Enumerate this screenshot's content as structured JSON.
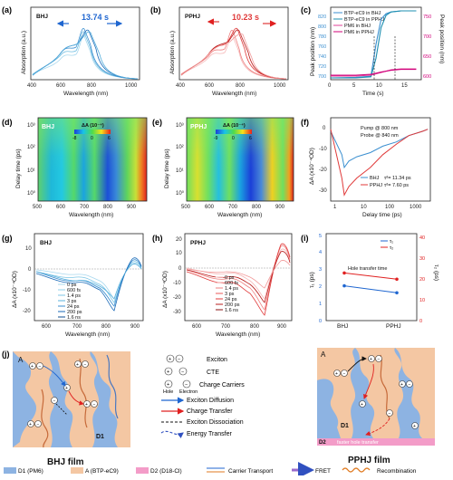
{
  "panels": {
    "a": {
      "letter": "(a)",
      "tag": "BHJ",
      "time_label": "13.74 s",
      "xlabel": "Wavelength (nm)",
      "ylabel": "Absorption (a.u.)",
      "xticks": [
        "400",
        "600",
        "800",
        "1000"
      ]
    },
    "b": {
      "letter": "(b)",
      "tag": "PPHJ",
      "time_label": "10.23 s",
      "xlabel": "Wavelength (nm)",
      "ylabel": "Absorption (a.u.)",
      "xticks": [
        "400",
        "600",
        "800",
        "1000"
      ]
    },
    "c": {
      "letter": "(c)",
      "xlabel": "Time (s)",
      "ylabel_left": "Peak position (nm)",
      "ylabel_right": "Peak position (nm)",
      "legend": [
        "BTP-eC9 in BHJ",
        "BTP-eC9 in PPHJ",
        "PM6 in BHJ",
        "PM6 in PPHJ"
      ],
      "xticks": [
        "0",
        "5",
        "10",
        "15"
      ],
      "yticks_left": [
        "700",
        "720",
        "740",
        "760",
        "780",
        "800",
        "820"
      ],
      "yticks_right": [
        "600",
        "650",
        "700",
        "750"
      ]
    },
    "d": {
      "letter": "(d)",
      "tag": "BHJ",
      "scale_title": "ΔA (10⁻⁴)",
      "scale_ticks": [
        "-8",
        "0",
        "6"
      ],
      "xlabel": "Wavelength (nm)",
      "ylabel": "Delay time (ps)",
      "xticks": [
        "500",
        "600",
        "700",
        "800",
        "900"
      ],
      "yticks": [
        "10³",
        "10²",
        "10¹",
        "10⁰"
      ]
    },
    "e": {
      "letter": "(e)",
      "tag": "PPHJ",
      "scale_title": "ΔA (10⁻⁴)",
      "scale_ticks": [
        "-9",
        "0",
        "6"
      ],
      "xlabel": "Wavelength (nm)",
      "ylabel": "Delay time (ps)",
      "xticks": [
        "500",
        "600",
        "700",
        "800",
        "900"
      ],
      "yticks": [
        "10³",
        "10²",
        "10¹",
        "10⁰"
      ]
    },
    "f": {
      "letter": "(f)",
      "pump": "Pump @ 800 nm",
      "probe": "Probe @ 840 nm",
      "legend": [
        "BHJ",
        "PPHJ"
      ],
      "tau_bhj": "τᵈ= 11.34 ps",
      "tau_pphj": "τᵈ= 7.60 ps",
      "xlabel": "Delay time (ps)",
      "ylabel": "ΔA (x10⁻⁴OD)",
      "xticks": [
        "1",
        "10",
        "100",
        "1000"
      ],
      "yticks": [
        "0",
        "-10",
        "-20",
        "-30"
      ]
    },
    "g": {
      "letter": "(g)",
      "tag": "BHJ",
      "xlabel": "Wavelength (nm)",
      "ylabel": "ΔA (x10⁻⁴OD)",
      "legend": [
        "0 ps",
        "600 fs",
        "1.4 ps",
        "3 ps",
        "24 ps",
        "200 ps",
        "1.6 ns"
      ],
      "xticks": [
        "600",
        "700",
        "800",
        "900"
      ],
      "yticks": [
        "10",
        "0",
        "-10",
        "-20"
      ]
    },
    "h": {
      "letter": "(h)",
      "tag": "PPHJ",
      "xlabel": "Wavelength (nm)",
      "ylabel": "ΔA (x10⁻⁴OD)",
      "legend": [
        "0 ps",
        "600 fs",
        "1.4 ps",
        "3 ps",
        "24 ps",
        "200 ps",
        "1.6 ns"
      ],
      "xticks": [
        "600",
        "700",
        "800",
        "900"
      ],
      "yticks": [
        "20",
        "10",
        "0",
        "-10",
        "-20",
        "-30"
      ]
    },
    "i": {
      "letter": "(i)",
      "title": "Hole transfer time",
      "legend": [
        "τ₁",
        "τ₂"
      ],
      "ylabel_left": "τ₁ (ps)",
      "ylabel_right": "τ₂ (ps)",
      "categories": [
        "BHJ",
        "PPHJ"
      ],
      "yticks_left": [
        "0",
        "1",
        "2",
        "3",
        "4",
        "5"
      ],
      "yticks_right": [
        "0",
        "10",
        "20",
        "30",
        "40"
      ]
    },
    "j": {
      "letter": "(j)",
      "bhj_film": "BHJ film",
      "pphj_film": "PPHJ film",
      "region_a": "A",
      "region_d1": "D1",
      "region_d2": "D2",
      "faster": "faster hole transfer",
      "key": {
        "exciton": "Exciton",
        "cte": "CTE",
        "hole": "Hole",
        "electron": "Electron",
        "charge_carriers": "Charge Carriers",
        "exciton_diffusion": "Exciton Diffusion",
        "charge_transfer": "Charge Transfer",
        "exciton_dissociation": "Exciton Dissociation",
        "energy_transfer": "Energy Transfer"
      },
      "bottom_legend": [
        "D1 (PM6)",
        "A (BTP-eC9)",
        "D2 (D18-Cl)",
        "Carrier Transport",
        "FRET",
        "Recombination"
      ]
    }
  },
  "colors": {
    "bhj": "#3b8fd0",
    "pphj": "#e03a3a",
    "pm6_bhj": "#e0409a",
    "pm6_pphj": "#d0007a",
    "acceptor_bg": "#f4c7a3",
    "donor": "#8db3e2",
    "d2": "#f39cc8"
  },
  "chart_data": [
    {
      "panel": "c",
      "type": "line",
      "xlabel": "Time (s)",
      "ylabel": "Peak position (nm)",
      "series": [
        {
          "name": "BTP-eC9 in BHJ",
          "x": [
            0,
            5,
            8,
            9,
            10,
            11,
            12,
            14,
            17
          ],
          "y": [
            700,
            701,
            703,
            760,
            805,
            815,
            818,
            820,
            820
          ]
        },
        {
          "name": "BTP-eC9 in PPHJ",
          "x": [
            0,
            5,
            8,
            9,
            10,
            11,
            12,
            14,
            17
          ],
          "y": [
            700,
            700,
            702,
            735,
            790,
            812,
            818,
            820,
            820
          ]
        },
        {
          "name": "PM6 in BHJ",
          "x": [
            0,
            5,
            8,
            10,
            12,
            14,
            17
          ],
          "y": [
            604,
            604,
            606,
            612,
            618,
            620,
            620
          ]
        },
        {
          "name": "PM6 in PPHJ",
          "x": [
            0,
            5,
            8,
            10,
            12,
            14,
            17
          ],
          "y": [
            606,
            606,
            608,
            613,
            617,
            619,
            619
          ]
        }
      ]
    },
    {
      "panel": "f",
      "type": "line",
      "xlabel": "Delay time (ps)",
      "ylabel": "ΔA (x10⁻⁴OD)",
      "series": [
        {
          "name": "BHJ",
          "x": [
            0.3,
            0.8,
            1,
            1.5,
            3,
            10,
            30,
            100,
            300,
            1000,
            1600
          ],
          "y": [
            -3,
            -14,
            -20,
            -17,
            -15,
            -13,
            -10,
            -8,
            -5,
            -3,
            -2
          ]
        },
        {
          "name": "PPHJ",
          "x": [
            0.3,
            0.8,
            1,
            1.5,
            3,
            10,
            30,
            100,
            300,
            1000,
            1600
          ],
          "y": [
            -2,
            -25,
            -33,
            -29,
            -25,
            -20,
            -14,
            -9,
            -5,
            -3,
            -2
          ]
        }
      ]
    },
    {
      "panel": "i",
      "type": "line",
      "categories": [
        "BHJ",
        "PPHJ"
      ],
      "series": [
        {
          "name": "τ₁",
          "values": [
            2.0,
            1.6
          ]
        },
        {
          "name": "τ₂",
          "values": [
            23,
            20
          ]
        }
      ],
      "ylim_left": [
        0,
        5
      ],
      "ylim_right": [
        0,
        42
      ]
    }
  ]
}
